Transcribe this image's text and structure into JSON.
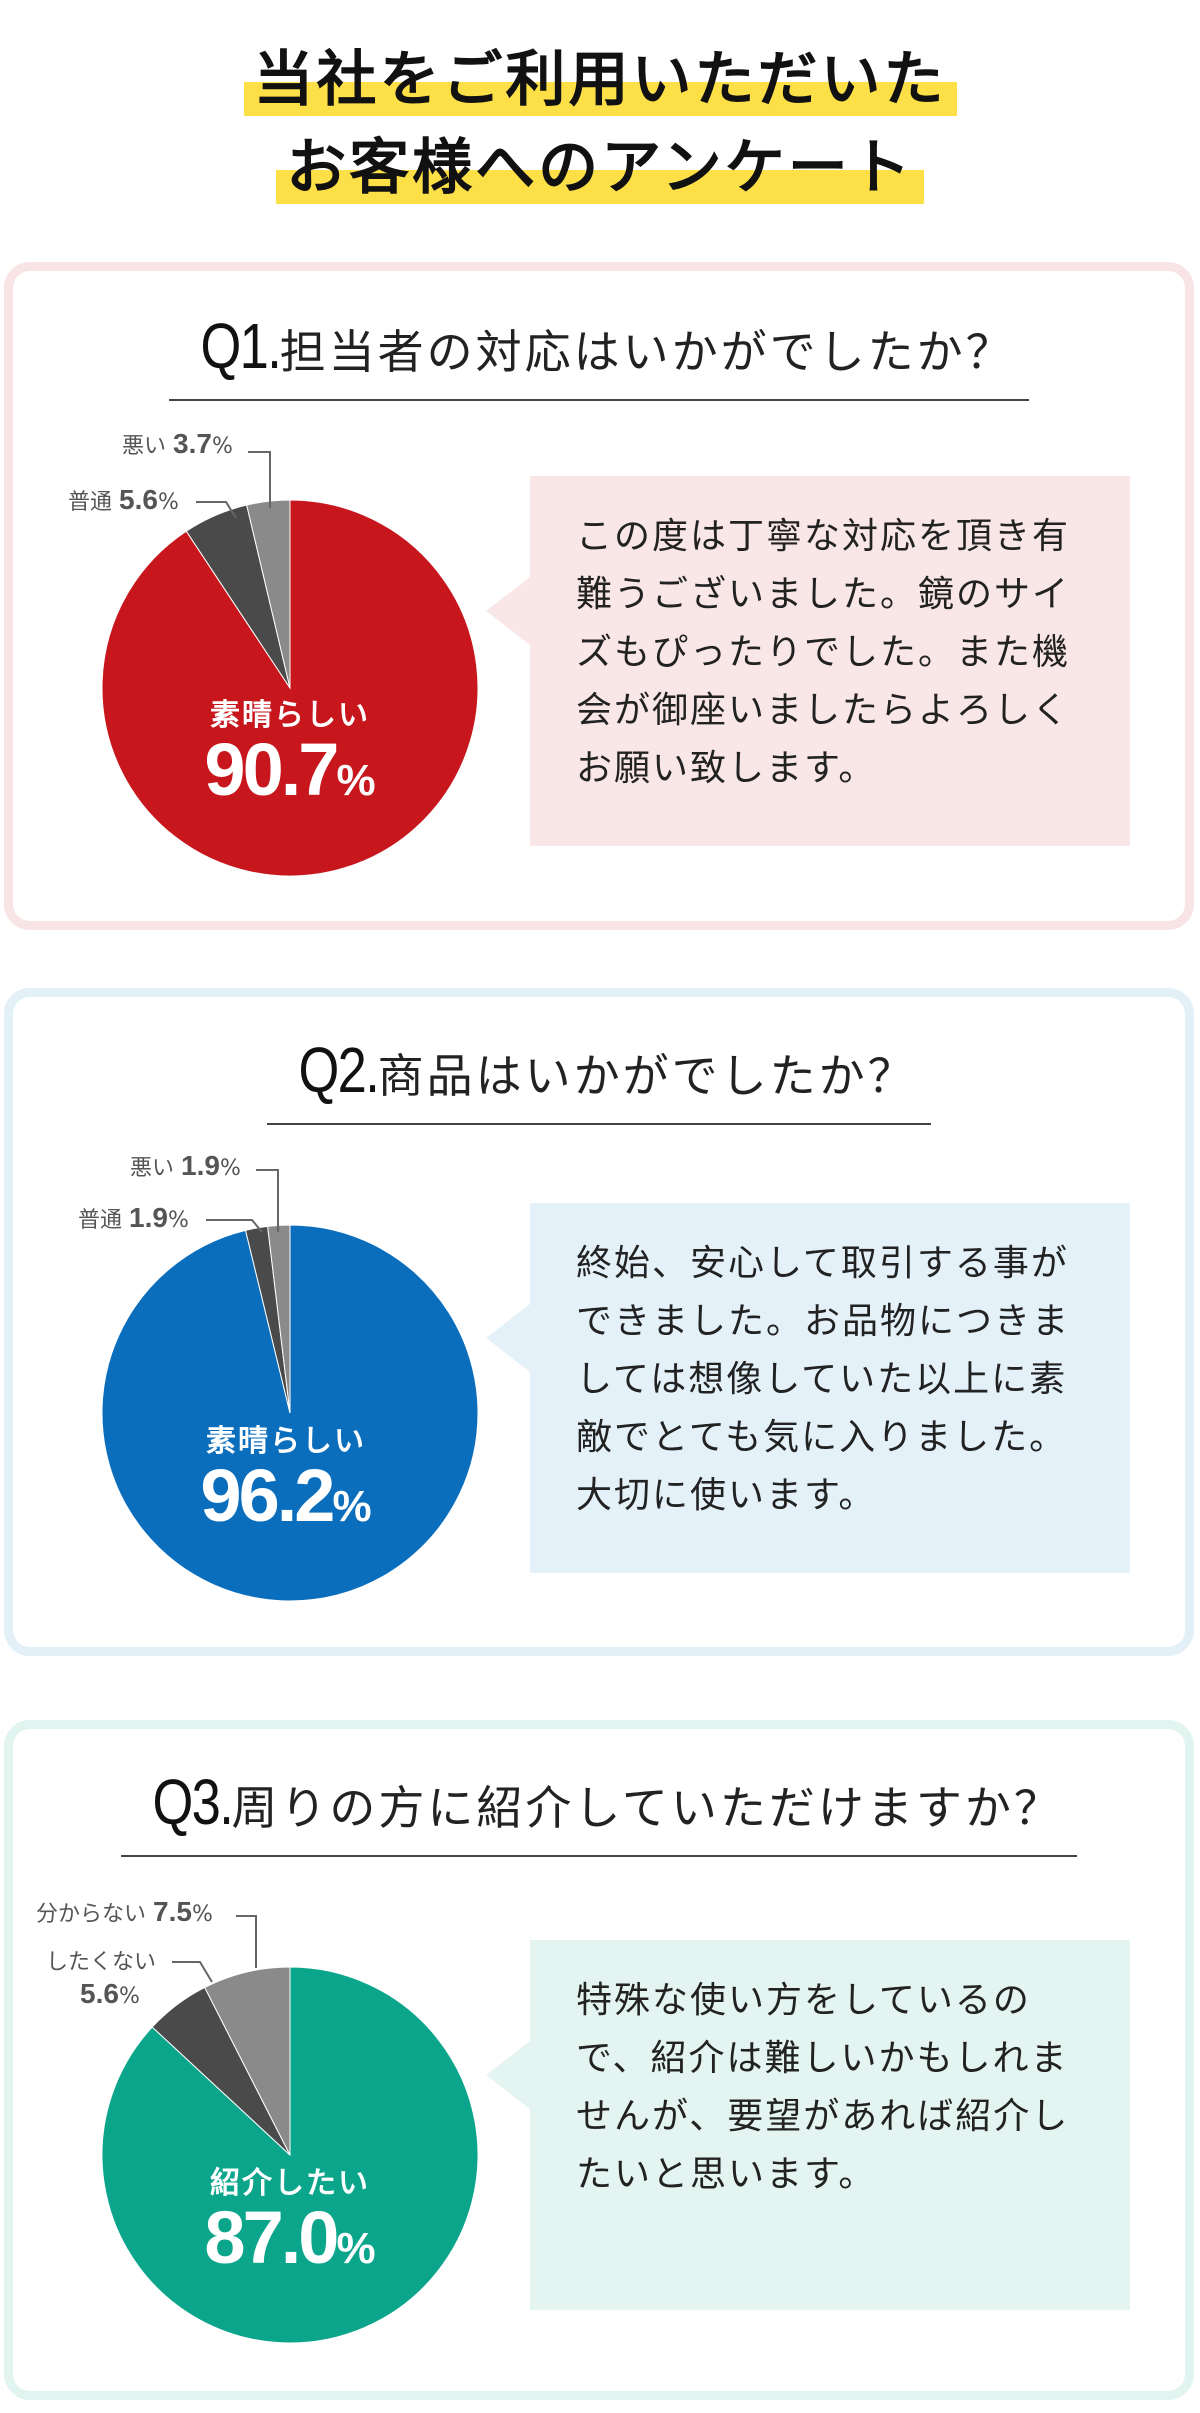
{
  "page_title": {
    "line1": "当社をご利用いただいた",
    "line2": "お客様へのアンケート"
  },
  "colors": {
    "q1_main": "#c8161d",
    "q2_main": "#0b6ebd",
    "q3_main": "#0aa58b",
    "dark_slice": "#4a4a4a",
    "gray_slice": "#8a8a8a",
    "q1_card_border": "#f8e4e4",
    "q1_bubble": "#f9e6e6",
    "q2_card_border": "#e3f0f7",
    "q2_bubble": "#e4f1f9",
    "q3_card_border": "#e2f4f0",
    "q3_bubble": "#e3f4f1"
  },
  "questions": [
    {
      "number": "Q1.",
      "text": "担当者の対応はいかがでしたか？",
      "main_label": "素晴らしい",
      "main_value_big": "90.7",
      "pct": "%",
      "label_a": "普通",
      "label_a_value": "5.6",
      "label_b": "悪い",
      "label_b_value": "3.7",
      "comment": "この度は丁寧な対応を頂き有難うございました。鏡のサイズもぴったりでした。また機会が御座いましたらよろしくお願い致します。"
    },
    {
      "number": "Q2.",
      "text": "商品はいかがでしたか？",
      "main_label": "素晴らしい",
      "main_value_big": "96.2",
      "pct": "%",
      "label_a": "普通",
      "label_a_value": "1.9",
      "label_b": "悪い",
      "label_b_value": "1.9",
      "comment": "終始、安心して取引する事ができました。お品物につきましては想像していた以上に素敵でとても気に入りました。大切に使います。"
    },
    {
      "number": "Q3.",
      "text": "周りの方に紹介していただけますか？",
      "main_label": "紹介したい",
      "main_value_big": "87.0",
      "pct": "%",
      "label_a": "したくない",
      "label_a_value": "5.6",
      "label_b": "分からない",
      "label_b_value": "7.5",
      "comment": "特殊な使い方をしているので、紹介は難しいかもしれませんが、要望があれば紹介したいと思います。"
    }
  ],
  "chart_data": [
    {
      "type": "pie",
      "title": "担当者の対応はいかがでしたか？",
      "slices": [
        {
          "label": "素晴らしい",
          "value": 90.7
        },
        {
          "label": "普通",
          "value": 5.6
        },
        {
          "label": "悪い",
          "value": 3.7
        }
      ]
    },
    {
      "type": "pie",
      "title": "商品はいかがでしたか？",
      "slices": [
        {
          "label": "素晴らしい",
          "value": 96.2
        },
        {
          "label": "普通",
          "value": 1.9
        },
        {
          "label": "悪い",
          "value": 1.9
        }
      ]
    },
    {
      "type": "pie",
      "title": "周りの方に紹介していただけますか？",
      "slices": [
        {
          "label": "紹介したい",
          "value": 87.0
        },
        {
          "label": "したくない",
          "value": 5.6
        },
        {
          "label": "分からない",
          "value": 7.5
        }
      ]
    }
  ]
}
